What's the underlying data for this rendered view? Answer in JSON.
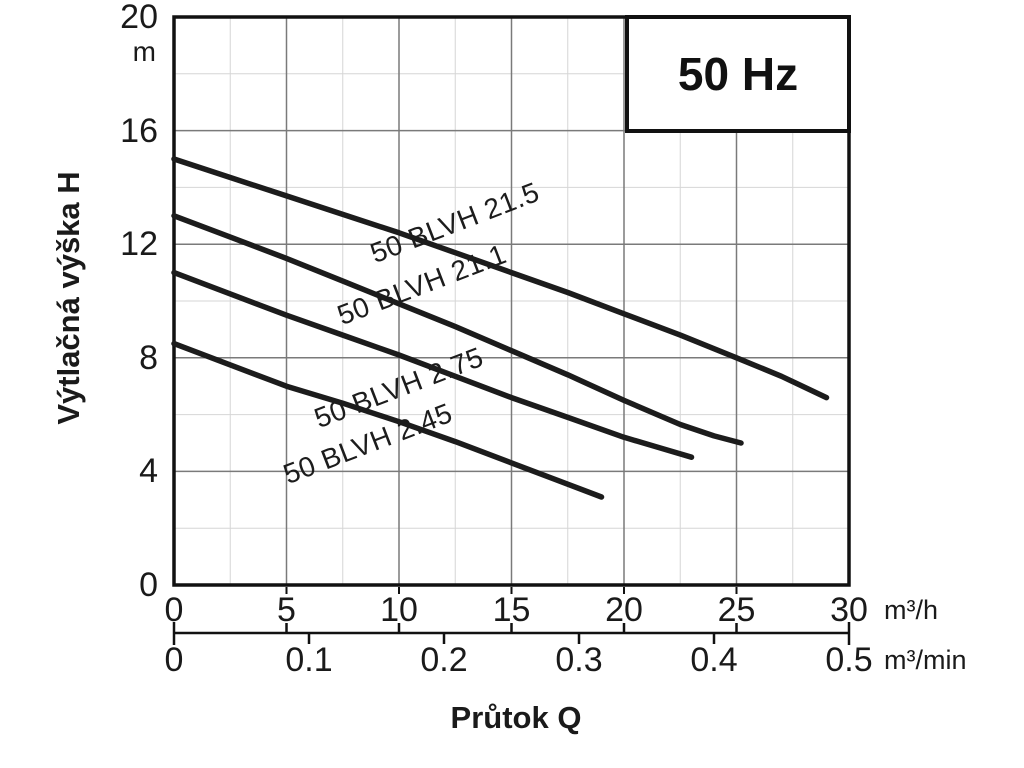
{
  "frequency_badge": {
    "label": "50 Hz"
  },
  "chart_data": {
    "type": "line",
    "title": "50 Hz",
    "xlabel": "Průtok Q",
    "ylabel": "Výtlačná výška H",
    "x_axes": [
      {
        "unit": "m³/h",
        "range": [
          0,
          30
        ],
        "ticks": [
          0,
          5,
          10,
          15,
          20,
          25,
          30
        ]
      },
      {
        "unit": "m³/min",
        "range": [
          0,
          0.5
        ],
        "ticks": [
          0,
          0.1,
          0.2,
          0.3,
          0.4,
          0.5
        ]
      }
    ],
    "y_axis": {
      "unit": "m",
      "range": [
        0,
        20
      ],
      "ticks": [
        0,
        4,
        8,
        12,
        16,
        20
      ],
      "minor_step": 2
    },
    "grid": {
      "x_major_step": 5,
      "x_minor_step": 2.5,
      "y_major_step": 4,
      "y_minor_step": 2,
      "visible": true
    },
    "legend": "labels-along-curves",
    "series": [
      {
        "name": "50 BLVH 21.5",
        "points": [
          [
            0,
            15.0
          ],
          [
            2.5,
            14.35
          ],
          [
            5,
            13.7
          ],
          [
            7.5,
            13.05
          ],
          [
            10,
            12.4
          ],
          [
            12.5,
            11.7
          ],
          [
            15,
            11.0
          ],
          [
            17.5,
            10.3
          ],
          [
            20,
            9.55
          ],
          [
            22.5,
            8.8
          ],
          [
            25,
            8.0
          ],
          [
            27,
            7.35
          ],
          [
            29,
            6.6
          ]
        ],
        "label_anchor": {
          "x": 12.5,
          "y": 12.75
        },
        "label_angle": -21
      },
      {
        "name": "50 BLVH 21.1",
        "points": [
          [
            0,
            13.0
          ],
          [
            2.5,
            12.25
          ],
          [
            5,
            11.5
          ],
          [
            7.5,
            10.7
          ],
          [
            10,
            9.9
          ],
          [
            12.5,
            9.1
          ],
          [
            15,
            8.25
          ],
          [
            17.5,
            7.4
          ],
          [
            20,
            6.5
          ],
          [
            22.5,
            5.65
          ],
          [
            24,
            5.25
          ],
          [
            25.2,
            5.0
          ]
        ],
        "label_anchor": {
          "x": 11.0,
          "y": 10.55
        },
        "label_angle": -21
      },
      {
        "name": "50 BLVH 2.75",
        "points": [
          [
            0,
            11.0
          ],
          [
            2.5,
            10.25
          ],
          [
            5,
            9.5
          ],
          [
            7.5,
            8.8
          ],
          [
            10,
            8.1
          ],
          [
            12.5,
            7.35
          ],
          [
            15,
            6.6
          ],
          [
            17.5,
            5.9
          ],
          [
            20,
            5.2
          ],
          [
            21.5,
            4.85
          ],
          [
            23,
            4.5
          ]
        ],
        "label_anchor": {
          "x": 10.0,
          "y": 6.95
        },
        "label_angle": -21
      },
      {
        "name": "50 BLVH 2.45",
        "points": [
          [
            0,
            8.5
          ],
          [
            2.5,
            7.75
          ],
          [
            5,
            7.0
          ],
          [
            7.5,
            6.4
          ],
          [
            10,
            5.75
          ],
          [
            12.5,
            5.05
          ],
          [
            15,
            4.3
          ],
          [
            17,
            3.7
          ],
          [
            19,
            3.1
          ]
        ],
        "label_anchor": {
          "x": 8.6,
          "y": 4.95
        },
        "label_angle": -21
      }
    ],
    "colors": {
      "curve": "#1c1c1c",
      "frame": "#111111",
      "grid_major": "#7a7a7a",
      "grid_minor": "#d6d6d6",
      "text": "#1a1a1a",
      "background": "#ffffff"
    }
  }
}
